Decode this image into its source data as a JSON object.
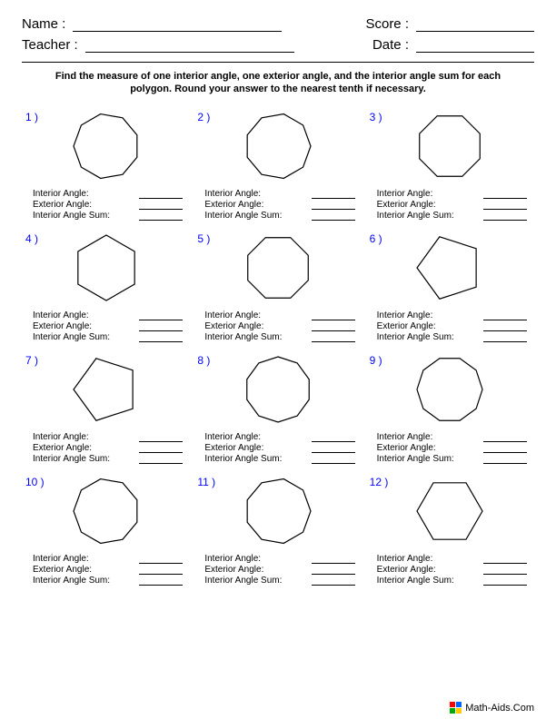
{
  "header": {
    "name_label": "Name :",
    "teacher_label": "Teacher :",
    "score_label": "Score :",
    "date_label": "Date :"
  },
  "instructions": "Find the measure of one interior angle, one exterior angle, and the interior angle sum for each polygon. Round your answer to the nearest tenth if necessary.",
  "answer_labels": {
    "interior": "Interior Angle:",
    "exterior": "Exterior Angle:",
    "sum": "Interior Angle Sum:"
  },
  "problems": [
    {
      "num": "1 )",
      "sides": 9,
      "rotation": -10
    },
    {
      "num": "2 )",
      "sides": 9,
      "rotation": 10
    },
    {
      "num": "3 )",
      "sides": 8,
      "rotation": 22.5
    },
    {
      "num": "4 )",
      "sides": 6,
      "rotation": 0
    },
    {
      "num": "5 )",
      "sides": 8,
      "rotation": 22.5
    },
    {
      "num": "6 )",
      "sides": 5,
      "rotation": -18
    },
    {
      "num": "7 )",
      "sides": 5,
      "rotation": -18
    },
    {
      "num": "8 )",
      "sides": 10,
      "rotation": 0
    },
    {
      "num": "9 )",
      "sides": 10,
      "rotation": 18
    },
    {
      "num": "10 )",
      "sides": 9,
      "rotation": -10
    },
    {
      "num": "11 )",
      "sides": 9,
      "rotation": 10
    },
    {
      "num": "12 )",
      "sides": 6,
      "rotation": 30
    }
  ],
  "footer": "Math-Aids.Com",
  "logo_colors": [
    "#ff0000",
    "#0066ff",
    "#00aa00",
    "#ffcc00"
  ],
  "number_color": "#0000ff",
  "stroke_color": "#000000",
  "stroke_width": 1.2
}
